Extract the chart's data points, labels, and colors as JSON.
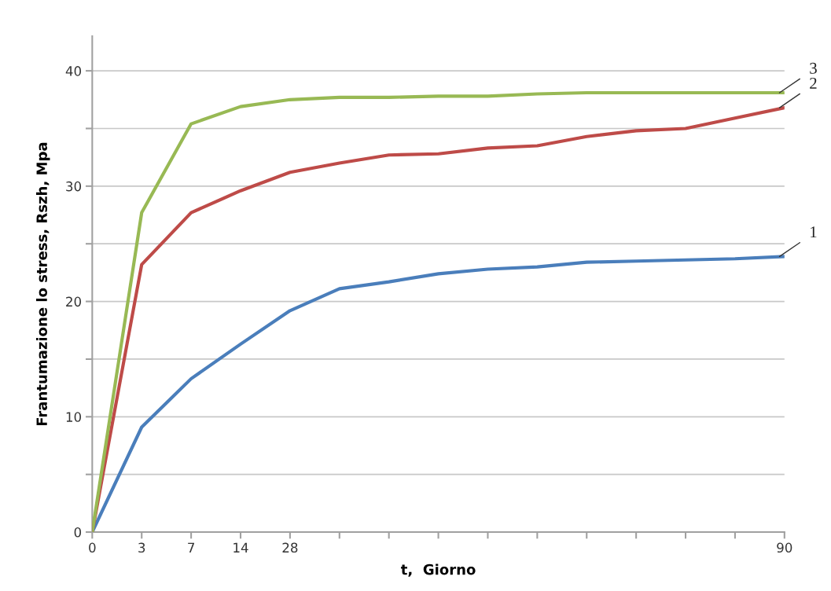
{
  "chart_data": {
    "type": "line",
    "xlabel": "t,  Giorno",
    "ylabel": "Frantumazione lo stress, Rszh, Mpa",
    "categories": [
      "0",
      "3",
      "7",
      "14",
      "28",
      null,
      null,
      null,
      null,
      null,
      null,
      null,
      null,
      null,
      "90"
    ],
    "series": [
      {
        "name": "1",
        "color": "#4a7ebb",
        "values": [
          0,
          9.1,
          13.3,
          16.3,
          19.2,
          21.1,
          21.7,
          22.4,
          22.8,
          23.0,
          23.4,
          23.5,
          23.6,
          23.7,
          23.9
        ]
      },
      {
        "name": "2",
        "color": "#be4b48",
        "values": [
          0,
          23.2,
          27.7,
          29.6,
          31.2,
          32.0,
          32.7,
          32.8,
          33.3,
          33.5,
          34.3,
          34.8,
          35.0,
          35.9,
          36.8
        ]
      },
      {
        "name": "3",
        "color": "#98b954",
        "values": [
          0,
          27.7,
          35.4,
          36.9,
          37.5,
          37.7,
          37.7,
          37.8,
          37.8,
          38.0,
          38.1,
          38.1,
          38.1,
          38.1,
          38.1
        ]
      }
    ],
    "ylim": [
      0,
      43
    ],
    "yticks": [
      0,
      {
        "value": 5,
        "label": null
      },
      10,
      {
        "value": 15,
        "label": null
      },
      20,
      {
        "value": 25,
        "label": null
      },
      30,
      {
        "value": 35,
        "label": null
      },
      40
    ],
    "grid": "y",
    "legend": false,
    "marker": "none",
    "line_style": "solid"
  }
}
